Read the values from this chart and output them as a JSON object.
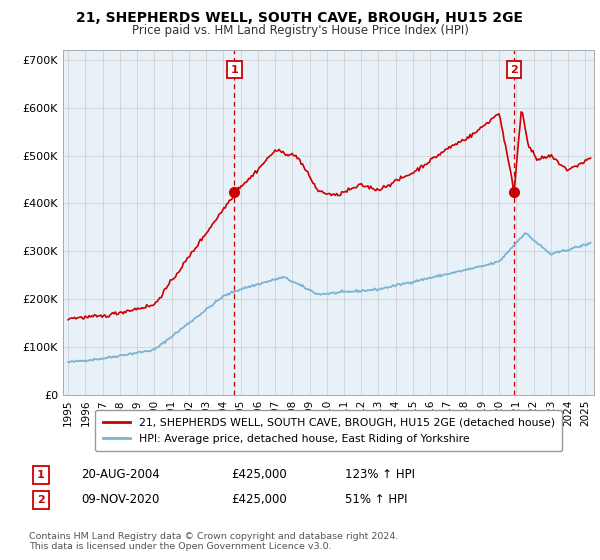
{
  "title": "21, SHEPHERDS WELL, SOUTH CAVE, BROUGH, HU15 2GE",
  "subtitle": "Price paid vs. HM Land Registry's House Price Index (HPI)",
  "ylabel_ticks": [
    "£0",
    "£100K",
    "£200K",
    "£300K",
    "£400K",
    "£500K",
    "£600K",
    "£700K"
  ],
  "ytick_vals": [
    0,
    100000,
    200000,
    300000,
    400000,
    500000,
    600000,
    700000
  ],
  "ylim": [
    0,
    720000
  ],
  "xlim_start": 1994.7,
  "xlim_end": 2025.5,
  "red_color": "#cc0000",
  "blue_color": "#7ab3d4",
  "chart_bg": "#e8f0f8",
  "marker1_date": 2004.63,
  "marker1_val": 425000,
  "marker2_date": 2020.86,
  "marker2_val": 425000,
  "legend1": "21, SHEPHERDS WELL, SOUTH CAVE, BROUGH, HU15 2GE (detached house)",
  "legend2": "HPI: Average price, detached house, East Riding of Yorkshire",
  "info1_num": "1",
  "info1_date": "20-AUG-2004",
  "info1_price": "£425,000",
  "info1_hpi": "123% ↑ HPI",
  "info2_num": "2",
  "info2_date": "09-NOV-2020",
  "info2_price": "£425,000",
  "info2_hpi": "51% ↑ HPI",
  "footer": "Contains HM Land Registry data © Crown copyright and database right 2024.\nThis data is licensed under the Open Government Licence v3.0.",
  "background_color": "#ffffff",
  "grid_color": "#cccccc"
}
